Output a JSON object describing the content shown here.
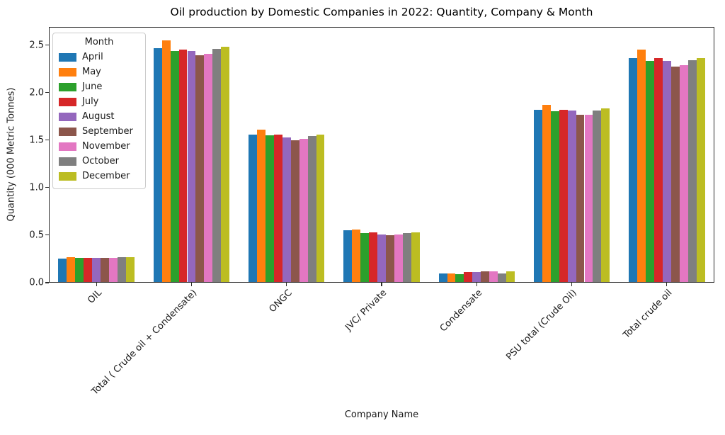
{
  "chart_data": {
    "type": "bar",
    "title": "Oil production by Domestic Companies in 2022: Quantity, Company & Month",
    "xlabel": "Company Name",
    "ylabel": "Quantity (000 Metric Tonnes)",
    "legend_title": "Month",
    "legend_position": "upper left",
    "grid": false,
    "ylim": [
      0,
      2.69
    ],
    "yticks": [
      0.0,
      0.5,
      1.0,
      1.5,
      2.0,
      2.5
    ],
    "ytick_labels": [
      "0.0",
      "0.5",
      "1.0",
      "1.5",
      "2.0",
      "2.5"
    ],
    "categories": [
      "OIL",
      "Total ( Crude oil + Condensate)",
      "ONGC",
      "JVC/ Private",
      "Condensate",
      "PSU total (Crude Oil)",
      "Total crude oil"
    ],
    "series": [
      {
        "name": "April",
        "color": "#1f77b4",
        "values": [
          0.25,
          2.47,
          1.56,
          0.55,
          0.1,
          1.82,
          2.36
        ]
      },
      {
        "name": "May",
        "color": "#ff7f0e",
        "values": [
          0.27,
          2.55,
          1.61,
          0.56,
          0.1,
          1.87,
          2.45
        ]
      },
      {
        "name": "June",
        "color": "#2ca02c",
        "values": [
          0.26,
          2.44,
          1.55,
          0.52,
          0.09,
          1.8,
          2.33
        ]
      },
      {
        "name": "July",
        "color": "#d62728",
        "values": [
          0.26,
          2.45,
          1.56,
          0.53,
          0.11,
          1.82,
          2.36
        ]
      },
      {
        "name": "August",
        "color": "#9467bd",
        "values": [
          0.26,
          2.44,
          1.53,
          0.51,
          0.11,
          1.81,
          2.33
        ]
      },
      {
        "name": "September",
        "color": "#8c564b",
        "values": [
          0.26,
          2.39,
          1.5,
          0.5,
          0.12,
          1.77,
          2.27
        ]
      },
      {
        "name": "November",
        "color": "#e377c2",
        "values": [
          0.26,
          2.41,
          1.51,
          0.51,
          0.12,
          1.77,
          2.29
        ]
      },
      {
        "name": "October",
        "color": "#7f7f7f",
        "values": [
          0.27,
          2.46,
          1.54,
          0.52,
          0.1,
          1.81,
          2.34
        ]
      },
      {
        "name": "December",
        "color": "#bcbd22",
        "values": [
          0.27,
          2.48,
          1.56,
          0.53,
          0.12,
          1.83,
          2.36
        ]
      }
    ]
  }
}
